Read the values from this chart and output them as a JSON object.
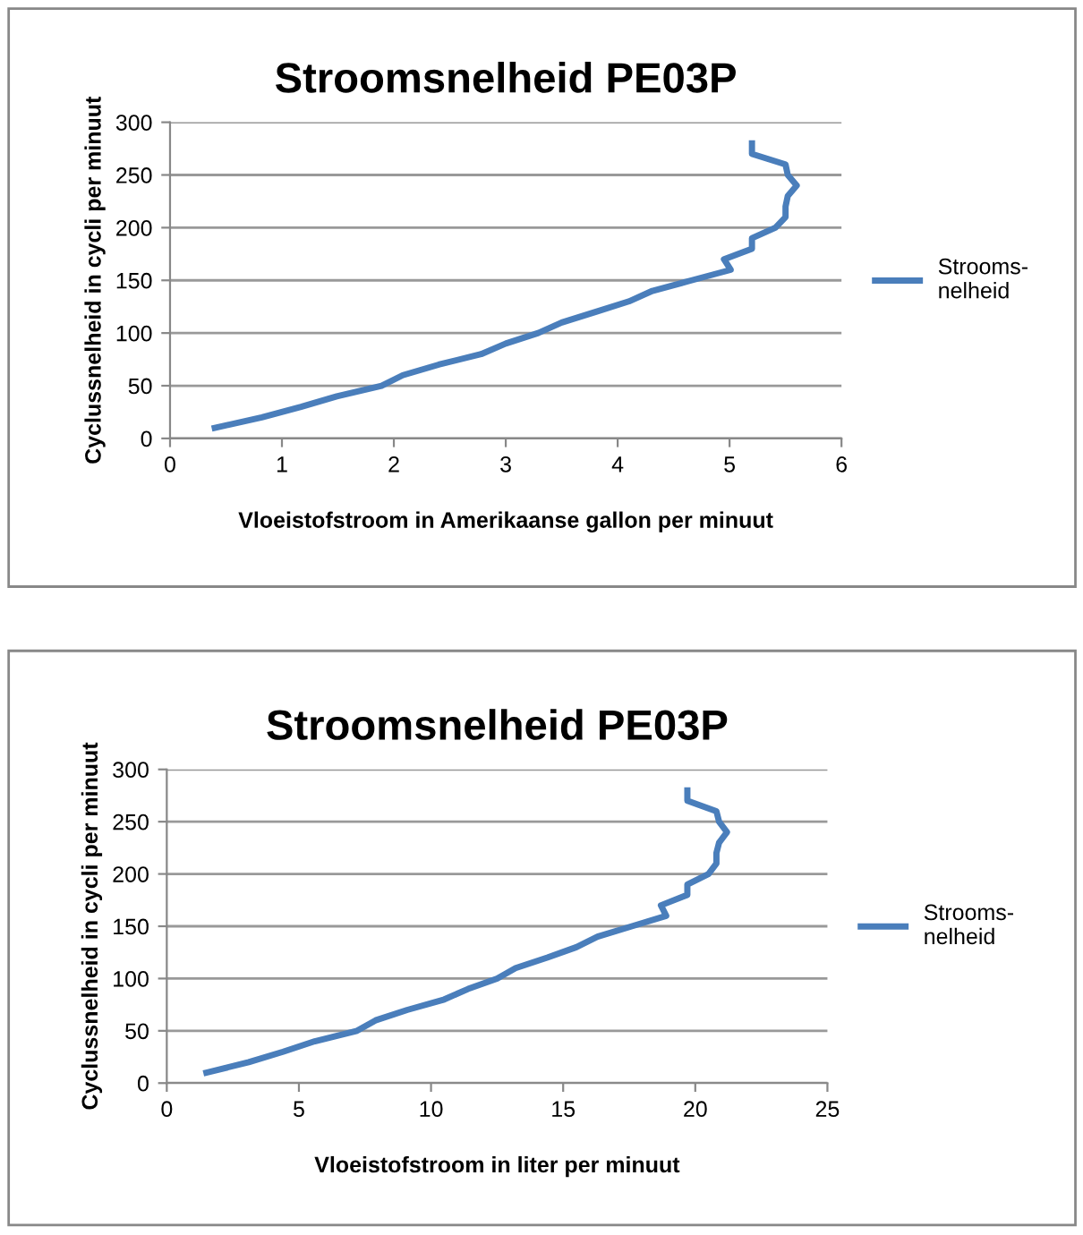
{
  "chart_data": [
    {
      "type": "line",
      "title": "Stroomsnelheid PE03P",
      "xlabel": "Vloeistofstroom in Amerikaanse gallon per minuut",
      "ylabel": "Cyclussnelheid in cycli per minuut",
      "series": [
        {
          "name": "Strooms-\nnelheid",
          "color": "#4a7ebb",
          "x": [
            0.4,
            0.82,
            1.17,
            1.49,
            1.89,
            2.08,
            2.4,
            2.78,
            3.0,
            3.29,
            3.5,
            3.8,
            4.1,
            4.31,
            4.66,
            5.01,
            4.95,
            5.2,
            5.2,
            5.41,
            5.5,
            5.5,
            5.52,
            5.6,
            5.52,
            5.5,
            5.2,
            5.2
          ],
          "values": [
            10,
            20,
            30,
            40,
            50,
            60,
            70,
            80,
            90,
            100,
            110,
            120,
            130,
            140,
            150,
            160,
            170,
            180,
            190,
            200,
            210,
            220,
            230,
            240,
            250,
            260,
            270,
            280
          ]
        }
      ],
      "xlim": [
        0,
        6
      ],
      "xticks": [
        0,
        1,
        2,
        3,
        4,
        5,
        6
      ],
      "ylim": [
        0,
        300
      ],
      "yticks": [
        0,
        50,
        100,
        150,
        200,
        250,
        300
      ],
      "grid": "y",
      "legend": "right",
      "marker": "none",
      "line_style": "solid"
    },
    {
      "type": "line",
      "title": "Stroomsnelheid PE03P",
      "xlabel": "Vloeistofstroom in liter per minuut",
      "ylabel": "Cyclussnelheid in cycli per minuut",
      "series": [
        {
          "name": "Strooms-\nnelheid",
          "color": "#4a7ebb",
          "x": [
            1.5,
            3.1,
            4.4,
            5.6,
            7.2,
            7.9,
            9.1,
            10.5,
            11.4,
            12.5,
            13.2,
            14.4,
            15.5,
            16.3,
            17.6,
            18.9,
            18.7,
            19.7,
            19.7,
            20.5,
            20.8,
            20.8,
            20.9,
            21.2,
            20.9,
            20.8,
            19.7,
            19.7
          ],
          "values": [
            10,
            20,
            30,
            40,
            50,
            60,
            70,
            80,
            90,
            100,
            110,
            120,
            130,
            140,
            150,
            160,
            170,
            180,
            190,
            200,
            210,
            220,
            230,
            240,
            250,
            260,
            270,
            280
          ]
        }
      ],
      "xlim": [
        0,
        25
      ],
      "xticks": [
        0,
        5,
        10,
        15,
        20,
        25
      ],
      "ylim": [
        0,
        300
      ],
      "yticks": [
        0,
        50,
        100,
        150,
        200,
        250,
        300
      ],
      "grid": "y",
      "legend": "right",
      "marker": "none",
      "line_style": "solid"
    }
  ]
}
